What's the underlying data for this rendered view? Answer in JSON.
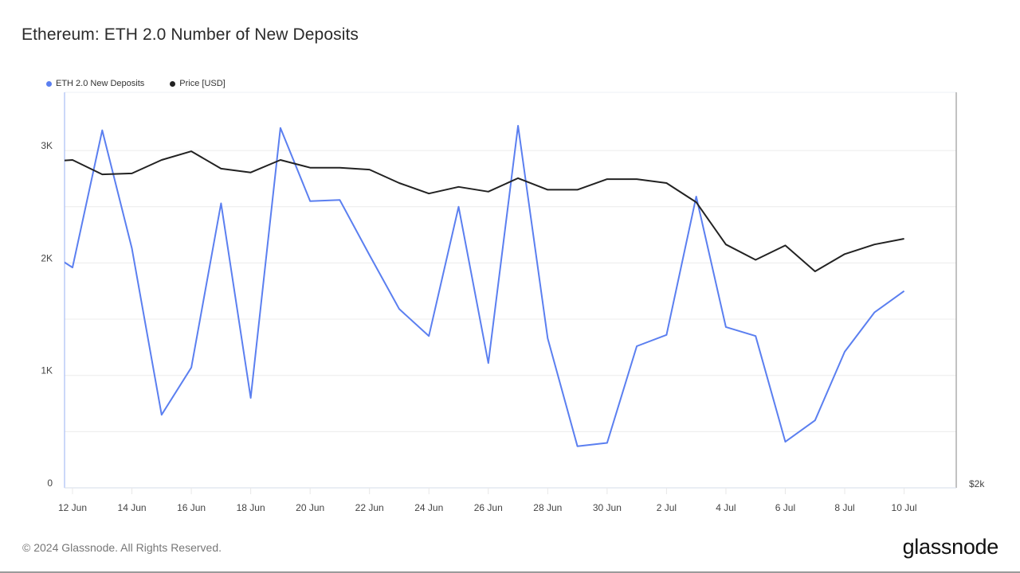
{
  "header": {
    "title": "Ethereum: ETH 2.0 Number of New Deposits"
  },
  "legend": [
    {
      "label": "ETH 2.0 New Deposits",
      "color": "#5b7ff0"
    },
    {
      "label": "Price [USD]",
      "color": "#222222"
    }
  ],
  "footer": {
    "copyright": "© 2024 Glassnode. All Rights Reserved.",
    "logo": "glassnode"
  },
  "chart_data": {
    "type": "line",
    "title": "Ethereum: ETH 2.0 Number of New Deposits",
    "xlabel": "",
    "ylabel": "",
    "x": [
      "11 Jun",
      "12 Jun",
      "13 Jun",
      "14 Jun",
      "15 Jun",
      "16 Jun",
      "17 Jun",
      "18 Jun",
      "19 Jun",
      "20 Jun",
      "21 Jun",
      "22 Jun",
      "23 Jun",
      "24 Jun",
      "25 Jun",
      "26 Jun",
      "27 Jun",
      "28 Jun",
      "29 Jun",
      "30 Jun",
      "1 Jul",
      "2 Jul",
      "3 Jul",
      "4 Jul",
      "5 Jul",
      "6 Jul",
      "7 Jul",
      "8 Jul",
      "9 Jul",
      "10 Jul"
    ],
    "x_tick_labels": [
      "12 Jun",
      "14 Jun",
      "16 Jun",
      "18 Jun",
      "20 Jun",
      "22 Jun",
      "24 Jun",
      "26 Jun",
      "28 Jun",
      "30 Jun",
      "2 Jul",
      "4 Jul",
      "6 Jul",
      "8 Jul",
      "10 Jul"
    ],
    "y_tick_labels": [
      "0",
      "1K",
      "2K",
      "3K"
    ],
    "y_ticks": [
      0,
      1000,
      2000,
      3000
    ],
    "ylim": [
      0,
      3500
    ],
    "right_axis_label": "$2k",
    "grid": true,
    "legend_position": "top-left",
    "series": [
      {
        "name": "ETH 2.0 New Deposits",
        "axis": "left",
        "color": "#5b7ff0",
        "values": [
          2130,
          1960,
          3180,
          2130,
          650,
          1070,
          2530,
          800,
          3200,
          2550,
          2560,
          2070,
          1590,
          1350,
          2500,
          1110,
          3220,
          1330,
          370,
          400,
          1260,
          1360,
          2590,
          1430,
          1350,
          410,
          600,
          1210,
          1560,
          1750
        ]
      },
      {
        "name": "Price [USD]",
        "axis": "right",
        "color": "#222222",
        "values": [
          3490,
          3500,
          3425,
          3430,
          3500,
          3545,
          3455,
          3435,
          3500,
          3460,
          3460,
          3450,
          3380,
          3325,
          3360,
          3335,
          3405,
          3345,
          3345,
          3400,
          3400,
          3380,
          3280,
          3060,
          2980,
          3055,
          2920,
          3010,
          3060,
          3090
        ]
      }
    ]
  }
}
